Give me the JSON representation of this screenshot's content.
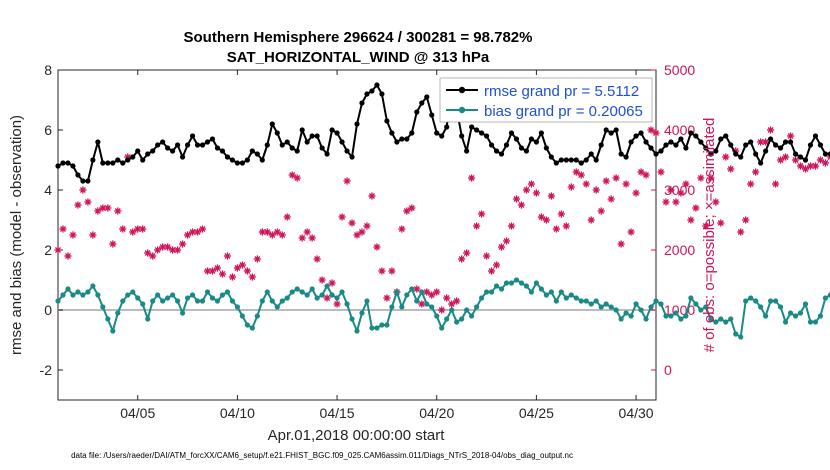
{
  "chart_data": {
    "type": "line",
    "title": "Southern Hemisphere 296624 / 300281 = 98.782%",
    "subtitle": "SAT_HORIZONTAL_WIND @ 313 hPa",
    "xlabel": "Apr.01,2018 00:00:00 start",
    "ylabel": "rmse and bias (model - observation)",
    "y2label": "# of obs: o=possible; ×=assimilated",
    "footer": "data file: /Users/raeder/DAI/ATM_forcXX/CAM6_setup/f.e21.FHIST_BGC.f09_025.CAM6assim.011/Diags_NTrS_2018-04/obs_diag_output.nc",
    "xlim": [
      1.0,
      31.0
    ],
    "ylim": [
      -3,
      8
    ],
    "y2lim": [
      -500,
      5000
    ],
    "x_ticks": [
      {
        "value": 5,
        "label": "04/05"
      },
      {
        "value": 10,
        "label": "04/10"
      },
      {
        "value": 15,
        "label": "04/15"
      },
      {
        "value": 20,
        "label": "04/20"
      },
      {
        "value": 25,
        "label": "04/25"
      },
      {
        "value": 30,
        "label": "04/30"
      }
    ],
    "y_ticks": [
      -2,
      0,
      2,
      4,
      6,
      8
    ],
    "y2_ticks": [
      0,
      1000,
      2000,
      3000,
      4000,
      5000
    ],
    "zero_line": 0,
    "legend": {
      "position": "top-right",
      "entries": [
        {
          "label": "rmse grand pr = 5.5112",
          "color": "#000000",
          "marker": "filled-circle"
        },
        {
          "label": "bias grand pr = 0.20065",
          "color": "#1a8a87",
          "marker": "filled-circle"
        }
      ]
    },
    "colors": {
      "rmse": "#000000",
      "bias": "#1a8a87",
      "obs": "#d0145a",
      "zero": "#bbbbbb"
    },
    "x_start": 1.0,
    "x_step": 0.25,
    "series": [
      {
        "name": "rmse",
        "axis": "left",
        "values": [
          4.8,
          4.9,
          4.9,
          4.8,
          4.5,
          4.3,
          4.3,
          5.0,
          5.6,
          4.9,
          4.9,
          4.9,
          5.0,
          4.9,
          5.0,
          5.1,
          5.3,
          5.0,
          5.2,
          5.3,
          5.5,
          5.6,
          5.4,
          5.3,
          5.5,
          5.1,
          5.5,
          5.8,
          5.5,
          5.5,
          5.6,
          5.7,
          5.4,
          5.3,
          5.1,
          5.0,
          4.9,
          4.9,
          5.0,
          5.3,
          5.2,
          5.0,
          5.5,
          6.2,
          5.9,
          5.5,
          5.6,
          5.4,
          5.3,
          6.0,
          5.6,
          5.8,
          5.8,
          5.4,
          5.2,
          6.0,
          5.9,
          5.6,
          5.3,
          5.1,
          6.2,
          6.9,
          7.2,
          7.3,
          7.5,
          7.2,
          6.3,
          5.9,
          5.6,
          5.7,
          5.7,
          5.9,
          6.6,
          6.9,
          7.1,
          6.5,
          5.9,
          5.8,
          6.1,
          7.6,
          6.7,
          5.8,
          5.3,
          6.1,
          6.0,
          5.9,
          5.8,
          5.5,
          5.3,
          5.2,
          5.5,
          5.9,
          5.7,
          5.4,
          5.3,
          5.7,
          5.6,
          5.9,
          5.4,
          5.1,
          4.9,
          5.0,
          5.0,
          5.0,
          5.0,
          4.9,
          5.0,
          5.2,
          5.0,
          5.5,
          6.0,
          5.9,
          6.0,
          5.2,
          5.1,
          5.6,
          5.8,
          5.9,
          5.6,
          5.4,
          5.2,
          5.3,
          5.5,
          5.6,
          5.5,
          5.7,
          5.4,
          5.9,
          5.8,
          5.6,
          5.4,
          5.2,
          5.3,
          5.7,
          5.8,
          5.5,
          5.2,
          5.1,
          5.5,
          5.6,
          5.2,
          4.9,
          5.3,
          5.7,
          5.5,
          5.4,
          5.6,
          5.6,
          5.2,
          5.1,
          5.0,
          5.5,
          5.8,
          5.5,
          5.2,
          5.2,
          5.3,
          5.6,
          5.7,
          6.0,
          5.8,
          5.4,
          6.1,
          6.2,
          6.1,
          5.8,
          6.0,
          6.1,
          6.4,
          6.3,
          6.0,
          5.8,
          5.6,
          5.4,
          5.5,
          5.3,
          5.0,
          4.9,
          4.7,
          4.6,
          4.5,
          4.6,
          4.8
        ]
      },
      {
        "name": "bias",
        "axis": "left",
        "values": [
          0.3,
          0.5,
          0.7,
          0.5,
          0.6,
          0.5,
          0.6,
          0.8,
          0.5,
          0.1,
          -0.3,
          -0.7,
          -0.1,
          0.3,
          0.5,
          0.6,
          0.4,
          0.2,
          -0.3,
          0.3,
          0.5,
          0.3,
          0.4,
          0.5,
          0.3,
          -0.1,
          0.4,
          0.5,
          0.3,
          0.3,
          0.6,
          0.4,
          0.3,
          0.5,
          0.6,
          0.3,
          0.1,
          -0.2,
          -0.5,
          -0.6,
          -0.2,
          0.3,
          0.6,
          0.3,
          0.1,
          0.3,
          0.4,
          0.6,
          0.7,
          0.6,
          0.5,
          0.7,
          0.4,
          0.5,
          0.8,
          0.5,
          0.4,
          0.6,
          0.2,
          -0.3,
          -0.7,
          -0.1,
          0.3,
          -0.6,
          -0.6,
          -0.5,
          -0.5,
          0.1,
          0.6,
          0.1,
          0.5,
          0.7,
          0.3,
          0.6,
          0.2,
          0.1,
          -0.2,
          -0.6,
          -0.3,
          0.0,
          -0.4,
          -0.3,
          0.0,
          -0.2,
          0.1,
          0.4,
          0.6,
          0.6,
          0.8,
          0.7,
          0.9,
          0.9,
          1.0,
          0.9,
          0.8,
          0.6,
          0.9,
          0.7,
          0.5,
          0.6,
          0.3,
          0.6,
          0.4,
          0.5,
          0.4,
          0.3,
          0.3,
          0.2,
          0.3,
          0.1,
          0.2,
          0.1,
          0.0,
          -0.3,
          -0.1,
          -0.2,
          0.2,
          0.0,
          -0.3,
          0.1,
          0.3,
          0.2,
          -0.2,
          -0.2,
          -0.1,
          -0.3,
          -0.2,
          0.4,
          0.2,
          0.0,
          0.1,
          -0.3,
          -0.4,
          -0.3,
          -0.4,
          -0.3,
          -0.8,
          -0.9,
          0.3,
          0.4,
          0.3,
          0.1,
          -0.2,
          0.3,
          0.3,
          0.1,
          -0.4,
          -0.1,
          -0.2,
          -0.1,
          0.2,
          -0.4,
          -0.4,
          -0.2,
          0.4,
          0.5,
          0.2,
          -0.1,
          -0.3,
          0.1,
          0.3,
          -0.2,
          0.4,
          -0.1,
          0.6,
          0.3,
          0.2,
          0.8,
          0.7,
          0.5,
          0.6,
          0.3,
          0.3,
          0.3,
          0.5,
          0.1,
          0.0,
          0.0,
          0.2,
          0.0,
          0.1
        ]
      },
      {
        "name": "obs",
        "axis": "right",
        "marker": "asterisk",
        "values": [
          2000,
          2350,
          1900,
          2250,
          2750,
          3000,
          2800,
          2250,
          2650,
          2700,
          2700,
          2100,
          2650,
          2350,
          3550,
          2300,
          2350,
          2350,
          1950,
          1900,
          2000,
          2050,
          2050,
          2000,
          2000,
          2100,
          2250,
          2300,
          2300,
          2350,
          1650,
          1650,
          1700,
          1600,
          1900,
          1550,
          1700,
          1750,
          1650,
          1550,
          1850,
          2300,
          2300,
          2250,
          2300,
          2250,
          2550,
          3250,
          3200,
          2200,
          2300,
          2200,
          1850,
          1500,
          1200,
          1450,
          1100,
          2550,
          3150,
          2450,
          2250,
          2300,
          2400,
          2900,
          2050,
          1650,
          1200,
          1650,
          1300,
          2350,
          2650,
          2700,
          1350,
          1100,
          1300,
          1250,
          1300,
          1000,
          1200,
          1100,
          1150,
          1850,
          1950,
          3200,
          2400,
          2600,
          1900,
          1650,
          1750,
          2050,
          2150,
          2400,
          2850,
          2750,
          3000,
          3100,
          2950,
          2550,
          2500,
          2900,
          2350,
          2600,
          2400,
          3050,
          3300,
          3250,
          3100,
          2500,
          3000,
          2650,
          3150,
          2850,
          3200,
          2100,
          3100,
          2300,
          2950,
          3300,
          3250,
          4000,
          3950,
          3300,
          2800,
          3000,
          2800,
          2950,
          3100,
          2500,
          2700,
          3200,
          2400,
          3200,
          2800,
          2450,
          3550,
          3350,
          3650,
          2300,
          2500,
          3100,
          3300,
          3800,
          3800,
          4000,
          3100,
          3500,
          3550,
          3900,
          3500,
          3400,
          3350,
          3400,
          3400,
          3500,
          3450,
          3550,
          3700,
          3800,
          3200,
          2850,
          3050,
          3100,
          3100,
          3350,
          2900,
          2700,
          3200,
          3450,
          3800,
          3900,
          2850,
          3100,
          3100,
          3500,
          3300,
          3100,
          3200,
          3300,
          3100,
          3300,
          3650,
          2500,
          2300,
          2100,
          -500
        ]
      }
    ]
  }
}
